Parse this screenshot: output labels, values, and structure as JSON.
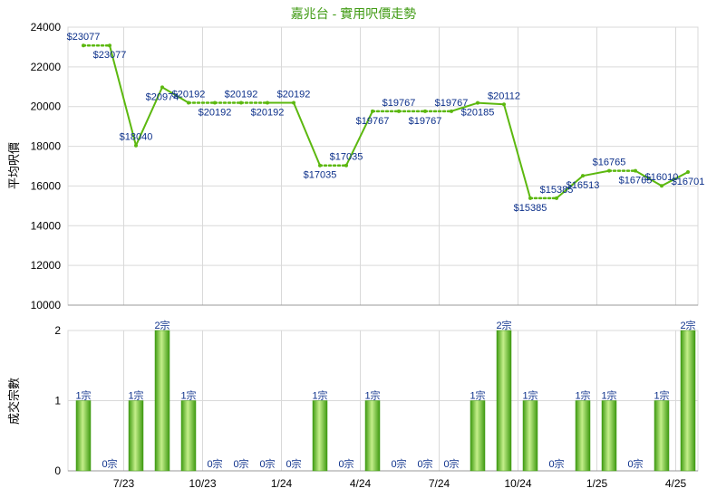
{
  "colors": {
    "line": "#5cb80f",
    "bar_light": "#c4ef8a",
    "bar_dark": "#3f9a12",
    "title": "#3f9a12",
    "grid": "#d9d9d9",
    "label": "#0b2f8a"
  },
  "chart_data": [
    {
      "type": "line",
      "title": "嘉兆台 - 實用呎價走勢",
      "ylabel": "平均呎價",
      "ylim": [
        10000,
        24000
      ],
      "yticks": [
        10000,
        12000,
        14000,
        16000,
        18000,
        20000,
        22000,
        24000
      ],
      "x_tick_labels": [
        "7/23",
        "10/23",
        "1/24",
        "4/24",
        "7/24",
        "10/24",
        "1/25",
        "4/25"
      ],
      "x_tick_index": [
        2,
        5,
        8,
        11,
        14,
        17,
        20,
        23
      ],
      "grid": true,
      "series": [
        {
          "values": [
            23077,
            23077,
            18040,
            20974,
            20192,
            20192,
            20192,
            20192,
            20192,
            17035,
            17035,
            19767,
            19767,
            19767,
            19767,
            20185,
            20112,
            15385,
            15385,
            16513,
            16765,
            16765,
            16010,
            16701
          ],
          "labels": [
            "$23077",
            "$23077",
            "$18040",
            "$20974",
            "$20192",
            "$20192",
            "$20192",
            "$20192",
            "$20192",
            "$17035",
            "$17035",
            "$19767",
            "$19767",
            "$19767",
            "$19767",
            "$20185",
            "$20112",
            "$15385",
            "$15385",
            "$16513",
            "$16765",
            "$16765",
            "$16010",
            "$16701"
          ],
          "interpolated": [
            false,
            true,
            false,
            false,
            false,
            true,
            true,
            true,
            false,
            false,
            true,
            false,
            true,
            true,
            true,
            false,
            false,
            false,
            true,
            false,
            false,
            true,
            false,
            false
          ]
        }
      ]
    },
    {
      "type": "bar",
      "ylabel": "成交宗數",
      "ylim": [
        0,
        2
      ],
      "yticks": [
        0,
        1,
        2
      ],
      "grid": true,
      "series": [
        {
          "values": [
            1,
            0,
            1,
            2,
            1,
            0,
            0,
            0,
            0,
            1,
            0,
            1,
            0,
            0,
            0,
            1,
            2,
            1,
            0,
            1,
            1,
            0,
            1,
            2
          ],
          "labels": [
            "1宗",
            "0宗",
            "1宗",
            "2宗",
            "1宗",
            "0宗",
            "0宗",
            "0宗",
            "0宗",
            "1宗",
            "0宗",
            "1宗",
            "0宗",
            "0宗",
            "0宗",
            "1宗",
            "2宗",
            "1宗",
            "0宗",
            "1宗",
            "1宗",
            "0宗",
            "1宗",
            "2宗"
          ]
        }
      ]
    }
  ]
}
